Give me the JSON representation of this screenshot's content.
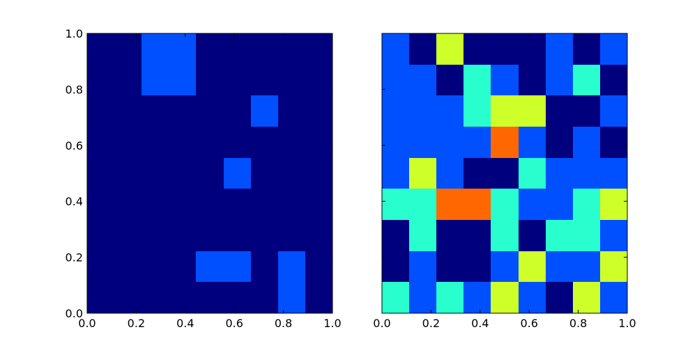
{
  "chart_data": [
    {
      "type": "heatmap",
      "title": "",
      "xlabel": "",
      "ylabel": "",
      "xlim": [
        0,
        1
      ],
      "ylim": [
        0,
        1
      ],
      "grid": false,
      "colormap": "jet",
      "x_ticks": [
        "0.0",
        "0.2",
        "0.4",
        "0.6",
        "0.8",
        "1.0"
      ],
      "y_ticks": [
        "0.0",
        "0.2",
        "0.4",
        "0.6",
        "0.8",
        "1.0"
      ],
      "show_y_tick_labels": true,
      "rows_top_to_bottom": [
        [
          0,
          0,
          1,
          1,
          0,
          0,
          0,
          0,
          0
        ],
        [
          0,
          0,
          1,
          1,
          0,
          0,
          0,
          0,
          0
        ],
        [
          0,
          0,
          0,
          0,
          0,
          0,
          1,
          0,
          0
        ],
        [
          0,
          0,
          0,
          0,
          0,
          0,
          0,
          0,
          0
        ],
        [
          0,
          0,
          0,
          0,
          0,
          1,
          0,
          0,
          0
        ],
        [
          0,
          0,
          0,
          0,
          0,
          0,
          0,
          0,
          0
        ],
        [
          0,
          0,
          0,
          0,
          0,
          0,
          0,
          0,
          0
        ],
        [
          0,
          0,
          0,
          0,
          1,
          1,
          0,
          1,
          0
        ],
        [
          0,
          0,
          0,
          0,
          0,
          0,
          0,
          1,
          0
        ]
      ],
      "value_colors": {
        "0": "#00007f",
        "1": "#0050ff",
        "2": "#29ffce",
        "3": "#ceff29",
        "4": "#ff6800"
      }
    },
    {
      "type": "heatmap",
      "title": "",
      "xlabel": "",
      "ylabel": "",
      "xlim": [
        0,
        1
      ],
      "ylim": [
        0,
        1
      ],
      "grid": false,
      "colormap": "jet",
      "x_ticks": [
        "0.0",
        "0.2",
        "0.4",
        "0.6",
        "0.8",
        "1.0"
      ],
      "y_ticks": [
        "0.0",
        "0.2",
        "0.4",
        "0.6",
        "0.8",
        "1.0"
      ],
      "show_y_tick_labels": false,
      "rows_top_to_bottom": [
        [
          1,
          0,
          3,
          0,
          0,
          0,
          1,
          0,
          1
        ],
        [
          1,
          1,
          0,
          2,
          1,
          0,
          1,
          2,
          0
        ],
        [
          1,
          1,
          1,
          2,
          3,
          3,
          0,
          0,
          1
        ],
        [
          1,
          1,
          1,
          1,
          4,
          1,
          0,
          1,
          0
        ],
        [
          1,
          3,
          1,
          0,
          0,
          2,
          1,
          1,
          1
        ],
        [
          2,
          2,
          4,
          4,
          2,
          1,
          1,
          2,
          3
        ],
        [
          0,
          2,
          0,
          0,
          2,
          0,
          2,
          2,
          1
        ],
        [
          0,
          1,
          0,
          0,
          1,
          3,
          1,
          1,
          3
        ],
        [
          2,
          1,
          2,
          1,
          3,
          1,
          0,
          3,
          1
        ]
      ],
      "value_colors": {
        "0": "#00007f",
        "1": "#0050ff",
        "2": "#29ffce",
        "3": "#ceff29",
        "4": "#ff6800"
      }
    }
  ]
}
